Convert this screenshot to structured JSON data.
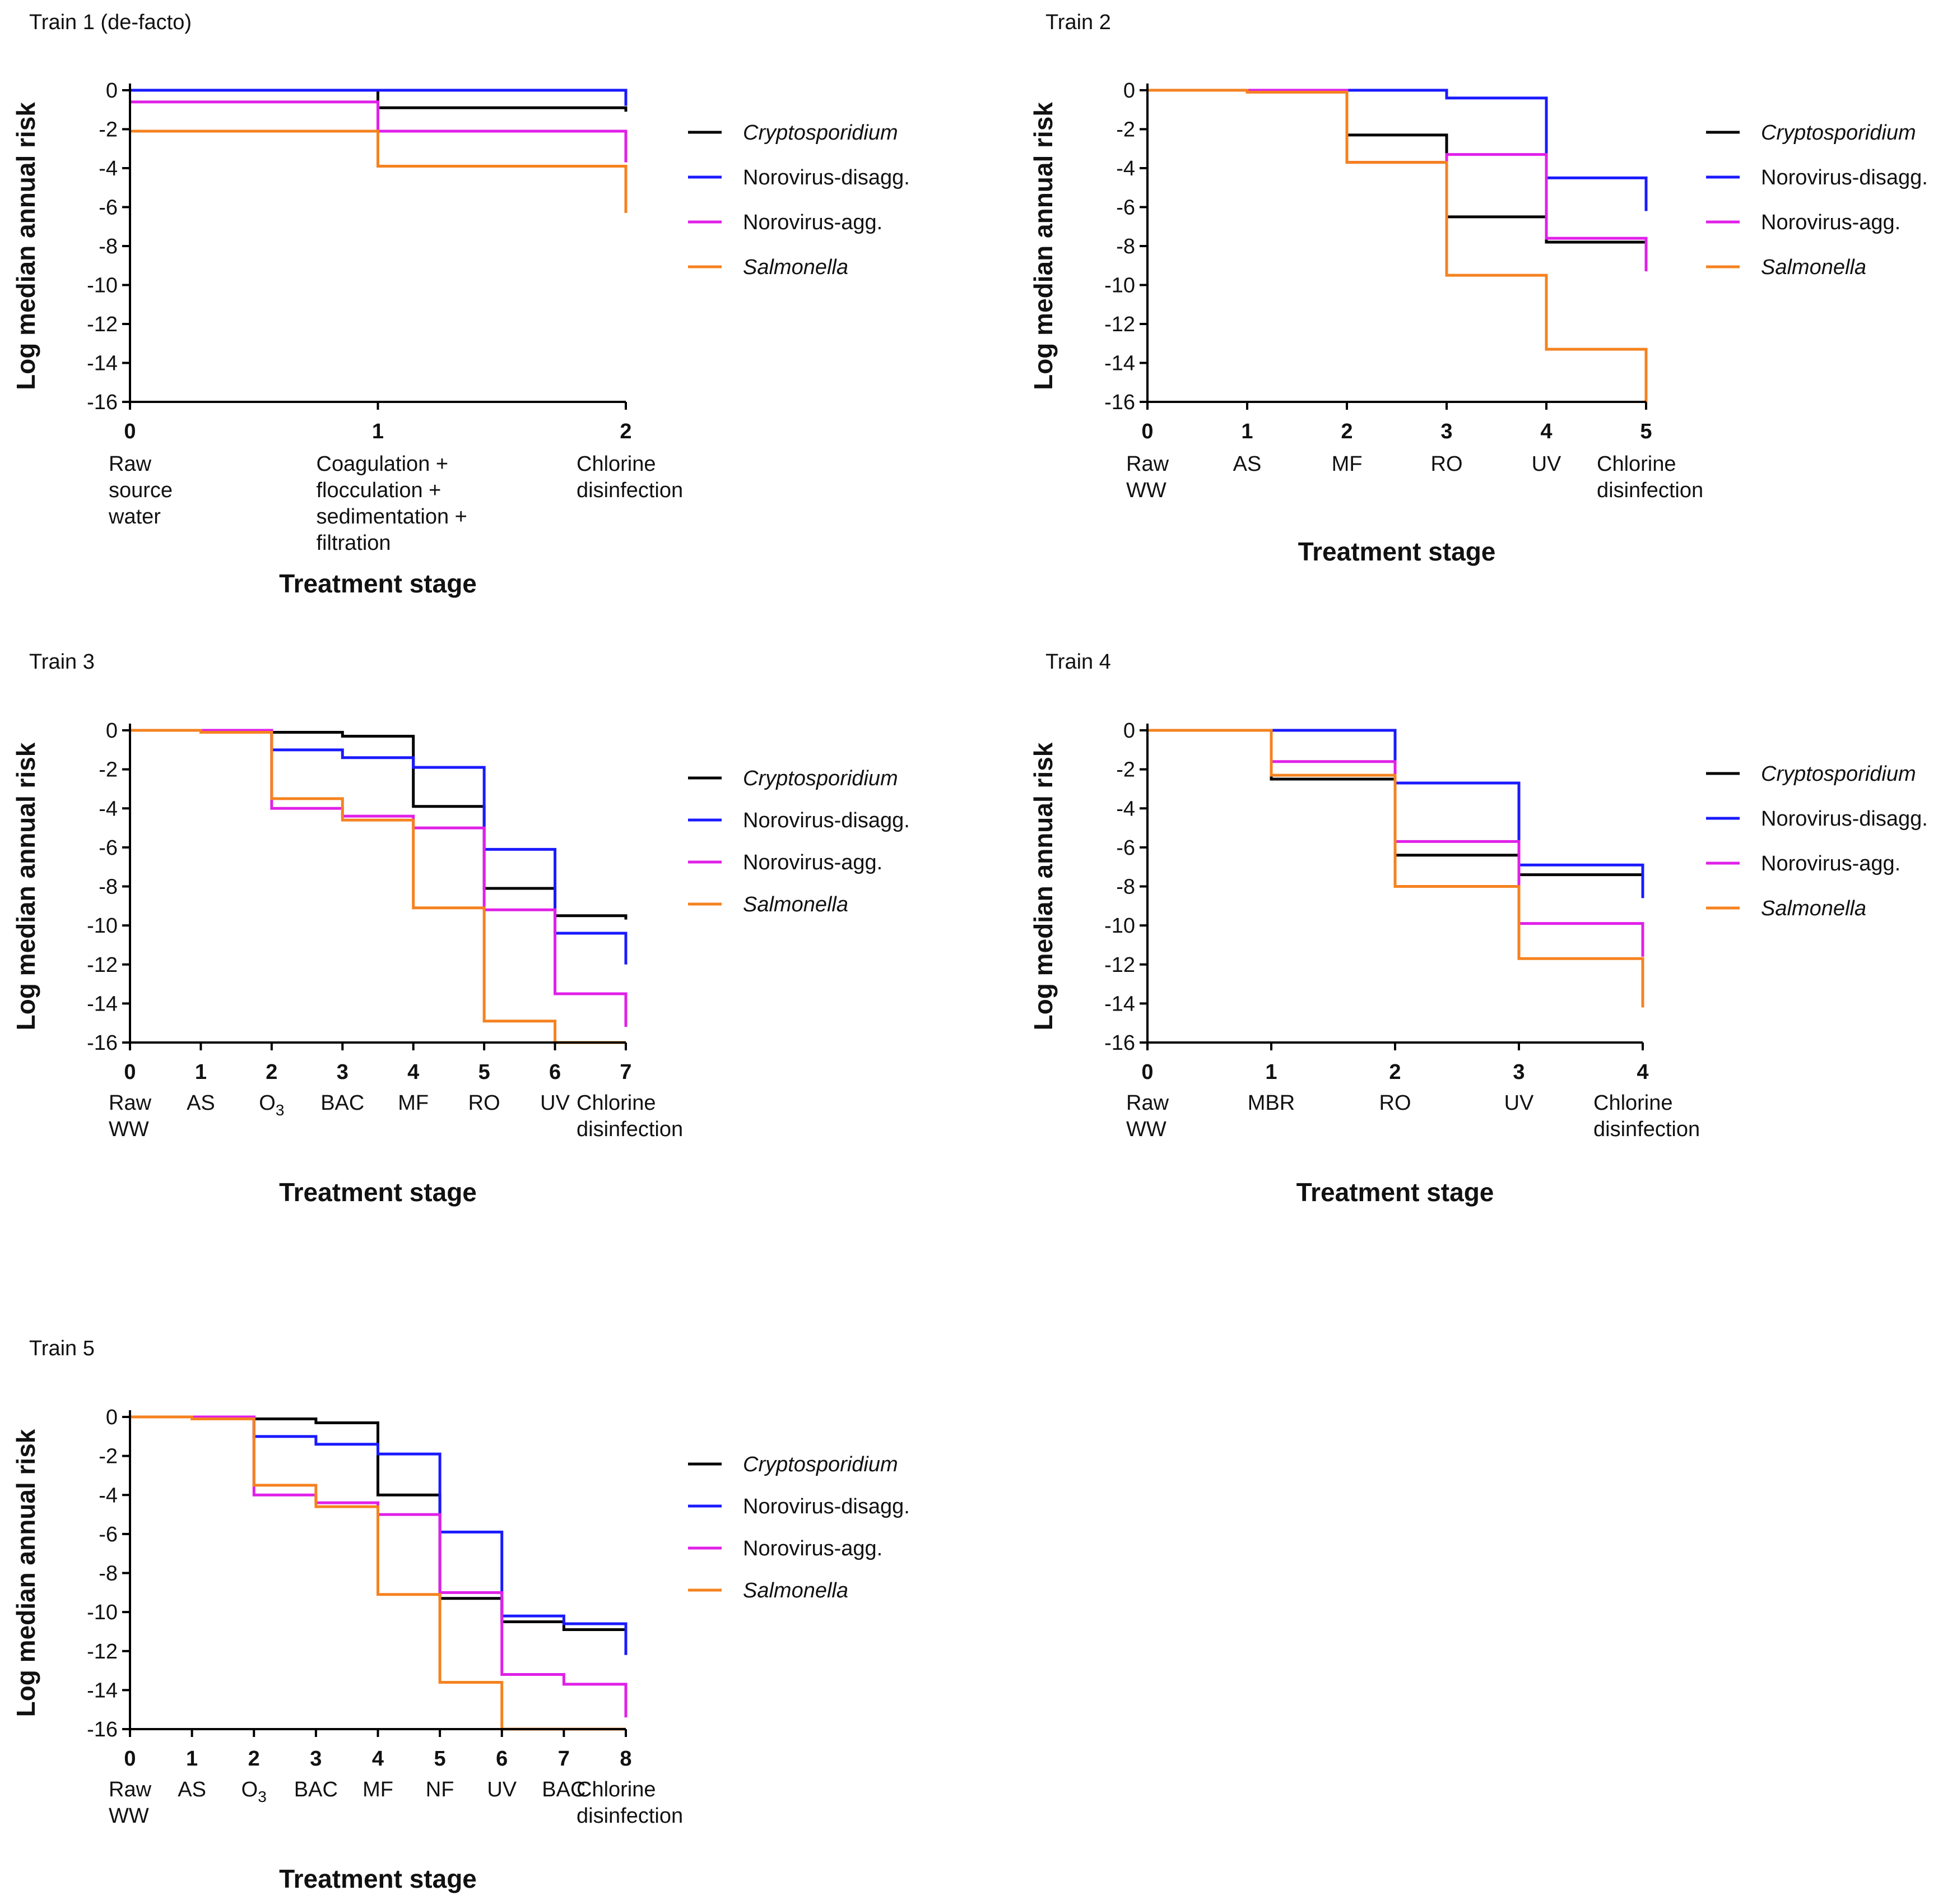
{
  "figure": {
    "background": "#ffffff"
  },
  "colors": {
    "Cryptosporidium": "#000000",
    "Norovirus-disagg.": "#1a1aff",
    "Norovirus-agg.": "#e020e8",
    "Salmonella": "#f58220"
  },
  "chart_data": [
    {
      "type": "line",
      "title": "Train 1 (de-facto)",
      "xlabel": "Treatment stage",
      "ylabel": "Log median annual risk",
      "xlim": [
        0,
        2
      ],
      "ylim": [
        -16,
        0
      ],
      "yticks": [
        0,
        -2,
        -4,
        -6,
        -8,
        -10,
        -12,
        -14,
        -16
      ],
      "x": [
        0,
        1,
        2
      ],
      "stage_labels": [
        [
          "Raw",
          "source",
          "water"
        ],
        [
          "Coagulation +",
          "flocculation +",
          "sedimentation +",
          "filtration"
        ],
        [
          "Chlorine",
          "disinfection"
        ]
      ],
      "series": [
        {
          "name": "Cryptosporidium",
          "italic": true,
          "values": [
            0,
            -0.9,
            -1.1
          ]
        },
        {
          "name": "Norovirus-disagg.",
          "italic": false,
          "values": [
            0,
            0,
            -0.8
          ]
        },
        {
          "name": "Norovirus-agg.",
          "italic": false,
          "values": [
            -0.6,
            -2.1,
            -3.7
          ]
        },
        {
          "name": "Salmonella",
          "italic": true,
          "values": [
            -2.1,
            -3.9,
            -6.3
          ]
        }
      ]
    },
    {
      "type": "line",
      "title": "Train 2",
      "xlabel": "Treatment stage",
      "ylabel": "Log median annual risk",
      "xlim": [
        0,
        5
      ],
      "ylim": [
        -16,
        0
      ],
      "yticks": [
        0,
        -2,
        -4,
        -6,
        -8,
        -10,
        -12,
        -14,
        -16
      ],
      "x": [
        0,
        1,
        2,
        3,
        4,
        5
      ],
      "stage_labels": [
        [
          "Raw",
          "WW"
        ],
        [
          "AS"
        ],
        [
          "MF"
        ],
        [
          "RO"
        ],
        [
          "UV"
        ],
        [
          "Chlorine",
          "disinfection"
        ]
      ],
      "series": [
        {
          "name": "Cryptosporidium",
          "italic": true,
          "values": [
            0,
            0,
            -2.3,
            -6.5,
            -7.8,
            -8.0
          ]
        },
        {
          "name": "Norovirus-disagg.",
          "italic": false,
          "values": [
            0,
            0,
            0,
            -0.4,
            -4.5,
            -6.2
          ]
        },
        {
          "name": "Norovirus-agg.",
          "italic": false,
          "values": [
            0,
            0,
            -3.7,
            -3.3,
            -7.6,
            -9.3
          ]
        },
        {
          "name": "Salmonella",
          "italic": true,
          "values": [
            0,
            -0.1,
            -3.7,
            -9.5,
            -13.3,
            -16
          ]
        }
      ]
    },
    {
      "type": "line",
      "title": "Train 3",
      "xlabel": "Treatment stage",
      "ylabel": "Log median annual risk",
      "xlim": [
        0,
        7
      ],
      "ylim": [
        -16,
        0
      ],
      "yticks": [
        0,
        -2,
        -4,
        -6,
        -8,
        -10,
        -12,
        -14,
        -16
      ],
      "x": [
        0,
        1,
        2,
        3,
        4,
        5,
        6,
        7
      ],
      "stage_labels": [
        [
          "Raw",
          "WW"
        ],
        [
          "AS"
        ],
        [
          "O3"
        ],
        [
          "BAC"
        ],
        [
          "MF"
        ],
        [
          "RO"
        ],
        [
          "UV"
        ],
        [
          "Chlorine",
          "disinfection"
        ]
      ],
      "series": [
        {
          "name": "Cryptosporidium",
          "italic": true,
          "values": [
            0,
            0,
            -0.1,
            -0.3,
            -3.9,
            -8.1,
            -9.5,
            -9.7
          ]
        },
        {
          "name": "Norovirus-disagg.",
          "italic": false,
          "values": [
            0,
            0,
            -1.0,
            -1.4,
            -1.9,
            -6.1,
            -10.4,
            -12.0
          ]
        },
        {
          "name": "Norovirus-agg.",
          "italic": false,
          "values": [
            0,
            0,
            -4.0,
            -4.4,
            -5.0,
            -9.2,
            -13.5,
            -15.2
          ]
        },
        {
          "name": "Salmonella",
          "italic": true,
          "values": [
            0,
            -0.1,
            -3.5,
            -4.6,
            -9.1,
            -14.9,
            -16,
            -16
          ]
        }
      ]
    },
    {
      "type": "line",
      "title": "Train 4",
      "xlabel": "Treatment stage",
      "ylabel": "Log median annual risk",
      "xlim": [
        0,
        4
      ],
      "ylim": [
        -16,
        0
      ],
      "yticks": [
        0,
        -2,
        -4,
        -6,
        -8,
        -10,
        -12,
        -14,
        -16
      ],
      "x": [
        0,
        1,
        2,
        3,
        4
      ],
      "stage_labels": [
        [
          "Raw",
          "WW"
        ],
        [
          "MBR"
        ],
        [
          "RO"
        ],
        [
          "UV"
        ],
        [
          "Chlorine",
          "disinfection"
        ]
      ],
      "series": [
        {
          "name": "Cryptosporidium",
          "italic": true,
          "values": [
            0,
            -2.5,
            -6.4,
            -7.4,
            -8.0
          ]
        },
        {
          "name": "Norovirus-disagg.",
          "italic": false,
          "values": [
            0,
            0,
            -2.7,
            -6.9,
            -8.6
          ]
        },
        {
          "name": "Norovirus-agg.",
          "italic": false,
          "values": [
            0,
            -1.6,
            -5.7,
            -9.9,
            -11.6
          ]
        },
        {
          "name": "Salmonella",
          "italic": true,
          "values": [
            0,
            -2.3,
            -8.0,
            -11.7,
            -14.2
          ]
        }
      ]
    },
    {
      "type": "line",
      "title": "Train 5",
      "xlabel": "Treatment stage",
      "ylabel": "Log median annual risk",
      "xlim": [
        0,
        8
      ],
      "ylim": [
        -16,
        0
      ],
      "yticks": [
        0,
        -2,
        -4,
        -6,
        -8,
        -10,
        -12,
        -14,
        -16
      ],
      "x": [
        0,
        1,
        2,
        3,
        4,
        5,
        6,
        7,
        8
      ],
      "stage_labels": [
        [
          "Raw",
          "WW"
        ],
        [
          "AS"
        ],
        [
          "O3"
        ],
        [
          "BAC"
        ],
        [
          "MF"
        ],
        [
          "NF"
        ],
        [
          "UV"
        ],
        [
          "BAC"
        ],
        [
          "Chlorine",
          "disinfection"
        ]
      ],
      "series": [
        {
          "name": "Cryptosporidium",
          "italic": true,
          "values": [
            0,
            0,
            -0.1,
            -0.3,
            -4.0,
            -9.3,
            -10.5,
            -10.9,
            -11.2
          ]
        },
        {
          "name": "Norovirus-disagg.",
          "italic": false,
          "values": [
            0,
            0,
            -1.0,
            -1.4,
            -1.9,
            -5.9,
            -10.2,
            -10.6,
            -12.2
          ]
        },
        {
          "name": "Norovirus-agg.",
          "italic": false,
          "values": [
            0,
            0,
            -4.0,
            -4.4,
            -5.0,
            -9.0,
            -13.2,
            -13.7,
            -15.4
          ]
        },
        {
          "name": "Salmonella",
          "italic": true,
          "values": [
            0,
            -0.1,
            -3.5,
            -4.6,
            -9.1,
            -13.6,
            -16,
            -16,
            -16
          ]
        }
      ]
    }
  ]
}
